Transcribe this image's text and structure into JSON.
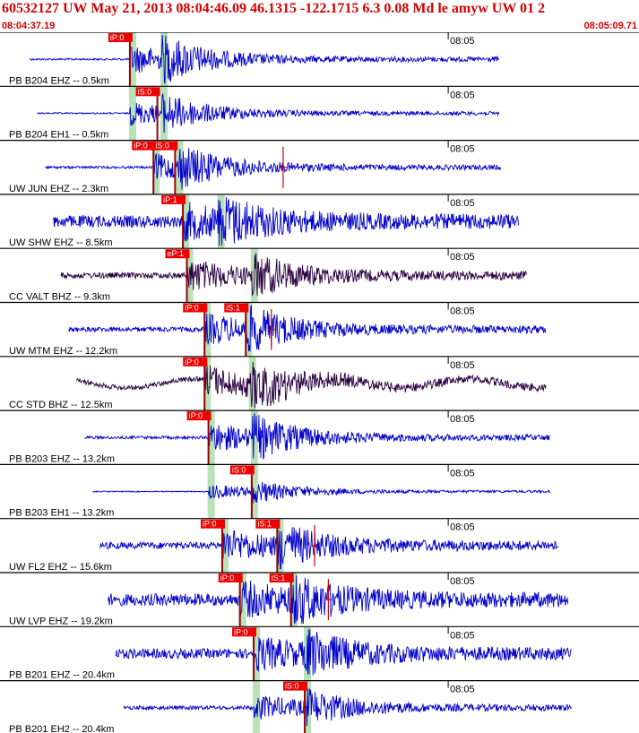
{
  "header": {
    "title": "60532127 UW May 21, 2013 08:04:46.09   46.1315 -122.1715  6.3 0.08 Md le amyw UW 01   2",
    "start_time": "08:04:37.19",
    "end_time": "08:05:09.71"
  },
  "chart_data": {
    "type": "line",
    "x_range": [
      "08:04:37.19",
      "08:05:09.71"
    ],
    "x_start_seconds": 37.19,
    "x_end_seconds": 69.71,
    "minute_tick": {
      "label": "08:05",
      "seconds": 60.0
    },
    "colors": {
      "trace_blue": "#0000cc",
      "trace_purple": "#2a0040",
      "pick_box": "#ee0000",
      "pick_line": "#990000",
      "window": "#b8e2b8",
      "residual": "#cc0000"
    },
    "channels": [
      {
        "label": "PB B204 EHZ -- 0.5km",
        "color": "#0000cc",
        "end": 62.6,
        "amp": 1.0,
        "noise": 0.04,
        "p": 43.8,
        "s": 45.4,
        "picks": [
          {
            "label": "iP:0",
            "time": 43.8
          }
        ]
      },
      {
        "label": "PB B204 EH1 -- 0.5km",
        "color": "#0000cc",
        "end": 62.6,
        "amp": 0.8,
        "noise": 0.03,
        "p": 43.8,
        "s": 45.4,
        "picks": [
          {
            "label": "iS:0",
            "time": 45.2
          }
        ]
      },
      {
        "label": "UW JUN EHZ -- 2.3km",
        "color": "#0000cc",
        "end": 62.7,
        "amp": 0.9,
        "noise": 0.05,
        "p": 45.0,
        "s": 46.2,
        "picks": [
          {
            "label": "iP:0",
            "time": 45.0
          },
          {
            "label": "iS:0",
            "time": 46.1
          }
        ],
        "spike": 51.6
      },
      {
        "label": "UW SHW EHZ -- 8.5km",
        "color": "#0000cc",
        "end": 63.6,
        "amp": 1.0,
        "noise": 0.25,
        "p": 46.5,
        "s": 48.3,
        "picks": [
          {
            "label": "iP:1",
            "time": 46.5
          }
        ]
      },
      {
        "label": "CC VALT BHZ -- 9.3km",
        "color": "#2a0040",
        "end": 64.0,
        "amp": 1.0,
        "noise": 0.12,
        "p": 46.7,
        "s": 50.0,
        "picks": [
          {
            "label": "eP:1",
            "time": 46.7
          }
        ]
      },
      {
        "label": "UW MTM EHZ -- 12.2km",
        "color": "#0000cc",
        "end": 65.0,
        "amp": 1.0,
        "noise": 0.1,
        "p": 47.6,
        "s": 49.7,
        "picks": [
          {
            "label": "iP:0",
            "time": 47.6
          },
          {
            "label": "iS:1",
            "time": 49.7
          }
        ],
        "spike": 51.0
      },
      {
        "label": "CC STD BHZ -- 12.5km",
        "color": "#2a0040",
        "end": 65.0,
        "amp": 1.0,
        "noise": 0.1,
        "p": 47.6,
        "s": 49.9,
        "picks": [
          {
            "label": "iP:0",
            "time": 47.6
          }
        ],
        "wave": true
      },
      {
        "label": "PB B203 EHZ -- 13.2km",
        "color": "#0000cc",
        "end": 65.2,
        "amp": 1.0,
        "noise": 0.06,
        "p": 47.8,
        "s": 50.0,
        "picks": [
          {
            "label": "iP:0",
            "time": 47.8
          }
        ]
      },
      {
        "label": "PB B203 EH1 -- 13.2km",
        "color": "#0000cc",
        "end": 65.2,
        "amp": 0.5,
        "noise": 0.02,
        "p": 47.8,
        "s": 50.0,
        "picks": [
          {
            "label": "iS:0",
            "time": 50.0
          }
        ]
      },
      {
        "label": "UW FL2 EHZ -- 15.6km",
        "color": "#0000cc",
        "end": 65.6,
        "amp": 1.0,
        "noise": 0.14,
        "p": 48.5,
        "s": 51.3,
        "picks": [
          {
            "label": "iP:0",
            "time": 48.5
          },
          {
            "label": "iS:1",
            "time": 51.3
          }
        ],
        "spike": 53.2
      },
      {
        "label": "UW LVP EHZ -- 19.2km",
        "color": "#0000cc",
        "end": 66.1,
        "amp": 1.0,
        "noise": 0.25,
        "p": 49.4,
        "s": 52.0,
        "picks": [
          {
            "label": "iP:0",
            "time": 49.4
          },
          {
            "label": "iS:1",
            "time": 52.0
          }
        ],
        "spike": 53.9
      },
      {
        "label": "PB B201 EHZ -- 20.4km",
        "color": "#0000cc",
        "end": 66.3,
        "amp": 1.0,
        "noise": 0.2,
        "p": 50.1,
        "s": 52.7,
        "picks": [
          {
            "label": "iP:0",
            "time": 50.1
          }
        ]
      },
      {
        "label": "PB B201 EH2 -- 20.4km",
        "color": "#0000cc",
        "end": 66.3,
        "amp": 0.8,
        "noise": 0.08,
        "p": 50.1,
        "s": 52.7,
        "picks": [
          {
            "label": "iS:0",
            "time": 52.7
          }
        ]
      }
    ]
  }
}
